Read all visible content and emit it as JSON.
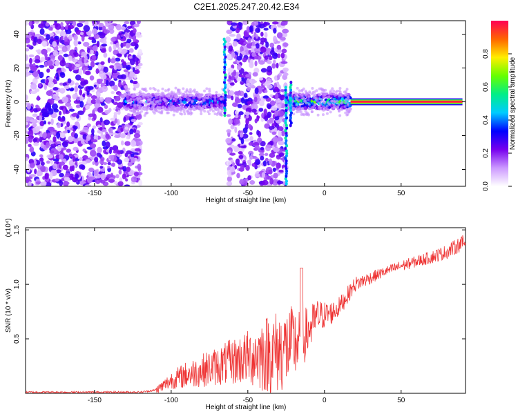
{
  "title": "C2E1.2025.247.20.42.E34",
  "chart_data": [
    {
      "type": "heatmap",
      "title": "C2E1.2025.247.20.42.E34",
      "xlabel": "Height of straight line (km)",
      "ylabel": "Frequency (Hz)",
      "xlim": [
        -195,
        92
      ],
      "ylim": [
        -50,
        48
      ],
      "x_ticks": [
        -150,
        -100,
        -50,
        0,
        50
      ],
      "y_ticks": [
        -40,
        -20,
        0,
        20,
        40
      ],
      "colorbar": {
        "label": "Normalized spectral amplitude",
        "range": [
          0,
          1
        ],
        "ticks": [
          0.0,
          0.2,
          0.4,
          0.6,
          0.8
        ],
        "tick_labels": [
          "0.0",
          "0.2",
          "0.4",
          "0.6",
          "0.8"
        ],
        "colormap": [
          "#ffffff",
          "#cc99ff",
          "#7700ee",
          "#0000ff",
          "#00ccff",
          "#00ee88",
          "#66ff00",
          "#ffee00",
          "#ff6600",
          "#ff0055"
        ]
      },
      "regions": [
        {
          "name": "noise",
          "x_range": [
            -195,
            -120
          ],
          "amplitude": 0.15
        },
        {
          "name": "band",
          "x_range": [
            -130,
            -65
          ],
          "center_freq": 0,
          "amplitude": 0.45
        },
        {
          "name": "noise",
          "x_range": [
            -63,
            -25
          ],
          "amplitude": 0.15
        },
        {
          "name": "band",
          "x_range": [
            -24,
            17
          ],
          "center_freq": 0,
          "amplitude": 0.65
        },
        {
          "name": "line",
          "x_range": [
            17,
            90
          ],
          "center_freq": 0,
          "amplitude": 1.0
        }
      ]
    },
    {
      "type": "line",
      "xlabel": "Height of straight line (km)",
      "ylabel": "SNR (10 * v/v)",
      "y_multiplier": "(x10⁴)",
      "xlim": [
        -195,
        92
      ],
      "ylim": [
        0,
        1.52
      ],
      "x_ticks": [
        -150,
        -100,
        -50,
        0,
        50
      ],
      "y_ticks": [
        0.5,
        1.0,
        1.5
      ],
      "y_tick_labels": [
        "0.5",
        "1.0",
        "1.5"
      ],
      "color": "#ee3333",
      "series": [
        {
          "name": "SNR",
          "x": [
            -195,
            -150,
            -120,
            -110,
            -105,
            -100,
            -90,
            -80,
            -70,
            -60,
            -50,
            -40,
            -30,
            -20,
            -15,
            -10,
            -5,
            0,
            5,
            10,
            15,
            20,
            30,
            40,
            50,
            60,
            70,
            80,
            90
          ],
          "y": [
            0.01,
            0.01,
            0.01,
            0.03,
            0.07,
            0.12,
            0.17,
            0.21,
            0.25,
            0.29,
            0.33,
            0.36,
            0.38,
            0.45,
            0.5,
            0.58,
            0.7,
            0.72,
            0.74,
            0.8,
            0.9,
            1.0,
            1.06,
            1.12,
            1.17,
            1.21,
            1.25,
            1.3,
            1.38
          ]
        }
      ],
      "noise_envelope": {
        "x": [
          -110,
          -90,
          -70,
          -50,
          -40,
          -30,
          -20,
          -10,
          0,
          10,
          20,
          40,
          60,
          90
        ],
        "amplitude": [
          0.02,
          0.07,
          0.1,
          0.14,
          0.2,
          0.22,
          0.2,
          0.12,
          0.07,
          0.05,
          0.04,
          0.025,
          0.03,
          0.04
        ]
      }
    }
  ]
}
